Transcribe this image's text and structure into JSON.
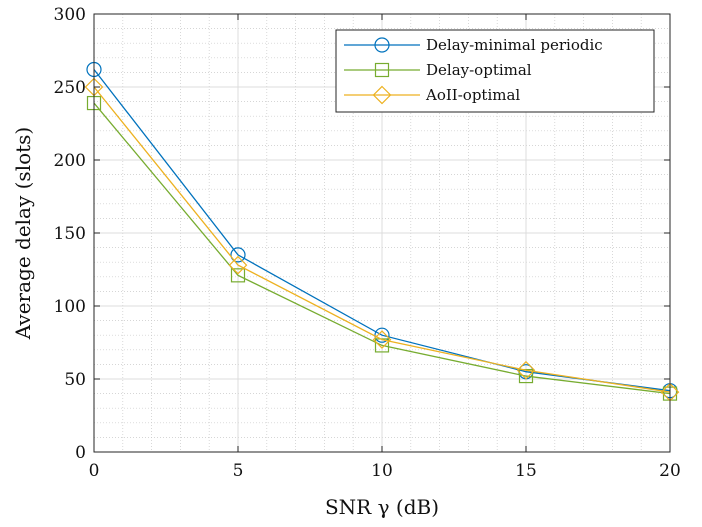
{
  "chart_data": {
    "type": "line",
    "title": "",
    "xlabel": "SNR γ (dB)",
    "ylabel": "Average delay (slots)",
    "x": [
      0,
      5,
      10,
      15,
      20
    ],
    "xlim": [
      0,
      20
    ],
    "ylim": [
      0,
      300
    ],
    "xticks": [
      0,
      5,
      10,
      15,
      20
    ],
    "yticks": [
      0,
      50,
      100,
      150,
      200,
      250,
      300
    ],
    "grid": true,
    "minor_grid": true,
    "legend_position": "top-right",
    "series": [
      {
        "name": "Delay-minimal periodic",
        "color": "#0072BD",
        "marker": "circle",
        "values": [
          262,
          135,
          80,
          55,
          42
        ]
      },
      {
        "name": "Delay-optimal",
        "color": "#77AC30",
        "marker": "square",
        "values": [
          239,
          121,
          73,
          52,
          40
        ]
      },
      {
        "name": "AoII-optimal",
        "color": "#EDB120",
        "marker": "diamond",
        "values": [
          250,
          128,
          77,
          56,
          41
        ]
      }
    ]
  }
}
